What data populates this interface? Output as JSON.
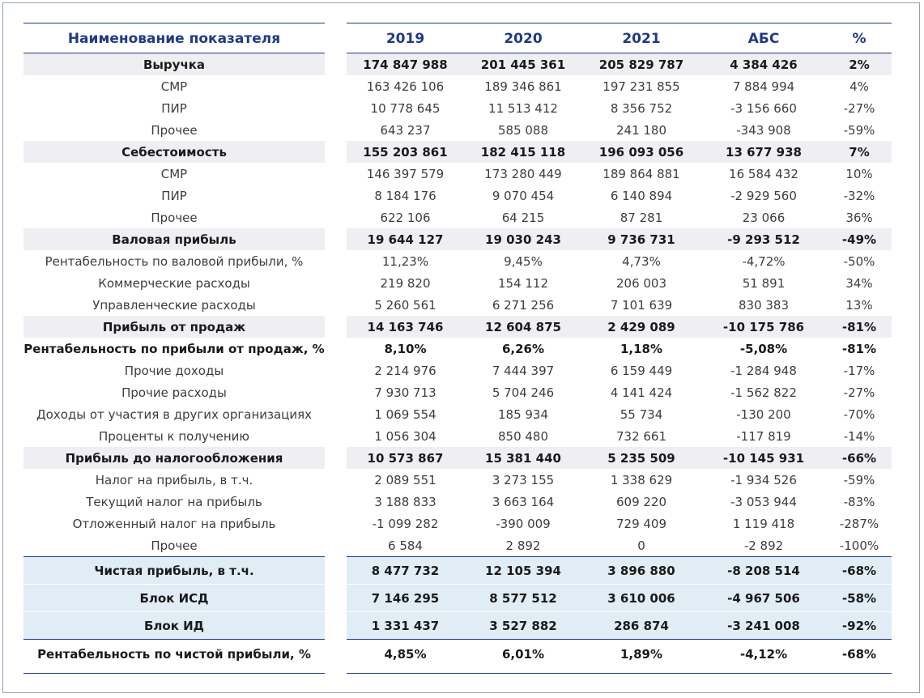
{
  "table": {
    "headers": [
      "Наименование показателя",
      "2019",
      "2020",
      "2021",
      "АБС",
      "%"
    ],
    "rows": [
      {
        "label": "Выручка",
        "v2019": "174 847 988",
        "v2020": "201 445 361",
        "v2021": "205 829 787",
        "abs": "4 384 426",
        "pct": "2%"
      },
      {
        "label": "СМР",
        "v2019": "163 426 106",
        "v2020": "189 346 861",
        "v2021": "197 231 855",
        "abs": "7 884 994",
        "pct": "4%"
      },
      {
        "label": "ПИР",
        "v2019": "10 778 645",
        "v2020": "11 513 412",
        "v2021": "8 356 752",
        "abs": "-3 156 660",
        "pct": "-27%"
      },
      {
        "label": "Прочее",
        "v2019": "643 237",
        "v2020": "585 088",
        "v2021": "241 180",
        "abs": "-343 908",
        "pct": "-59%"
      },
      {
        "label": "Себестоимость",
        "v2019": "155 203 861",
        "v2020": "182 415 118",
        "v2021": "196 093 056",
        "abs": "13 677 938",
        "pct": "7%"
      },
      {
        "label": "СМР",
        "v2019": "146 397 579",
        "v2020": "173 280 449",
        "v2021": "189 864 881",
        "abs": "16 584 432",
        "pct": "10%"
      },
      {
        "label": "ПИР",
        "v2019": "8 184 176",
        "v2020": "9 070 454",
        "v2021": "6 140 894",
        "abs": "-2 929 560",
        "pct": "-32%"
      },
      {
        "label": "Прочее",
        "v2019": "622 106",
        "v2020": "64 215",
        "v2021": "87 281",
        "abs": "23 066",
        "pct": "36%"
      },
      {
        "label": "Валовая прибыль",
        "v2019": "19 644 127",
        "v2020": "19 030 243",
        "v2021": "9 736 731",
        "abs": "-9 293 512",
        "pct": "-49%"
      },
      {
        "label": "Рентабельность по валовой прибыли, %",
        "v2019": "11,23%",
        "v2020": "9,45%",
        "v2021": "4,73%",
        "abs": "-4,72%",
        "pct": "-50%"
      },
      {
        "label": "Коммерческие расходы",
        "v2019": "219 820",
        "v2020": "154 112",
        "v2021": "206 003",
        "abs": "51 891",
        "pct": "34%"
      },
      {
        "label": "Управленческие расходы",
        "v2019": "5 260 561",
        "v2020": "6 271 256",
        "v2021": "7 101 639",
        "abs": "830 383",
        "pct": "13%"
      },
      {
        "label": "Прибыль от продаж",
        "v2019": "14 163 746",
        "v2020": "12 604 875",
        "v2021": "2 429 089",
        "abs": "-10 175 786",
        "pct": "-81%"
      },
      {
        "label": "Рентабельность по прибыли от продаж, %",
        "v2019": "8,10%",
        "v2020": "6,26%",
        "v2021": "1,18%",
        "abs": "-5,08%",
        "pct": "-81%"
      },
      {
        "label": "Прочие доходы",
        "v2019": "2 214 976",
        "v2020": "7 444 397",
        "v2021": "6 159 449",
        "abs": "-1 284 948",
        "pct": "-17%"
      },
      {
        "label": "Прочие расходы",
        "v2019": "7 930 713",
        "v2020": "5 704 246",
        "v2021": "4 141 424",
        "abs": "-1 562 822",
        "pct": "-27%"
      },
      {
        "label": "Доходы от участия в других организациях",
        "v2019": "1 069 554",
        "v2020": "185 934",
        "v2021": "55 734",
        "abs": "-130 200",
        "pct": "-70%"
      },
      {
        "label": "Проценты к получению",
        "v2019": "1 056 304",
        "v2020": "850 480",
        "v2021": "732 661",
        "abs": "-117 819",
        "pct": "-14%"
      },
      {
        "label": "Прибыль до налогообложения",
        "v2019": "10 573 867",
        "v2020": "15 381 440",
        "v2021": "5 235 509",
        "abs": "-10 145 931",
        "pct": "-66%"
      },
      {
        "label": "Налог на прибыль, в т.ч.",
        "v2019": "2 089 551",
        "v2020": "3 273 155",
        "v2021": "1 338 629",
        "abs": "-1 934 526",
        "pct": "-59%"
      },
      {
        "label": "Текущий налог на прибыль",
        "v2019": "3 188 833",
        "v2020": "3 663 164",
        "v2021": "609 220",
        "abs": "-3 053 944",
        "pct": "-83%"
      },
      {
        "label": "Отложенный налог на прибыль",
        "v2019": "-1 099 282",
        "v2020": "-390 009",
        "v2021": "729 409",
        "abs": "1 119 418",
        "pct": "-287%"
      },
      {
        "label": "Прочее",
        "v2019": "6 584",
        "v2020": "2 892",
        "v2021": "0",
        "abs": "-2 892",
        "pct": "-100%"
      },
      {
        "label": "Чистая прибыль, в т.ч.",
        "v2019": "8 477 732",
        "v2020": "12 105 394",
        "v2021": "3 896 880",
        "abs": "-8 208 514",
        "pct": "-68%"
      },
      {
        "label": "Блок ИСД",
        "v2019": "7 146 295",
        "v2020": "8 577 512",
        "v2021": "3 610 006",
        "abs": "-4 967 506",
        "pct": "-58%"
      },
      {
        "label": "Блок ИД",
        "v2019": "1 331 437",
        "v2020": "3 527 882",
        "v2021": "286 874",
        "abs": "-3 241 008",
        "pct": "-92%"
      },
      {
        "label": "Рентабельность по чистой прибыли, %",
        "v2019": "4,85%",
        "v2020": "6,01%",
        "v2021": "1,89%",
        "abs": "-4,12%",
        "pct": "-68%"
      }
    ]
  }
}
